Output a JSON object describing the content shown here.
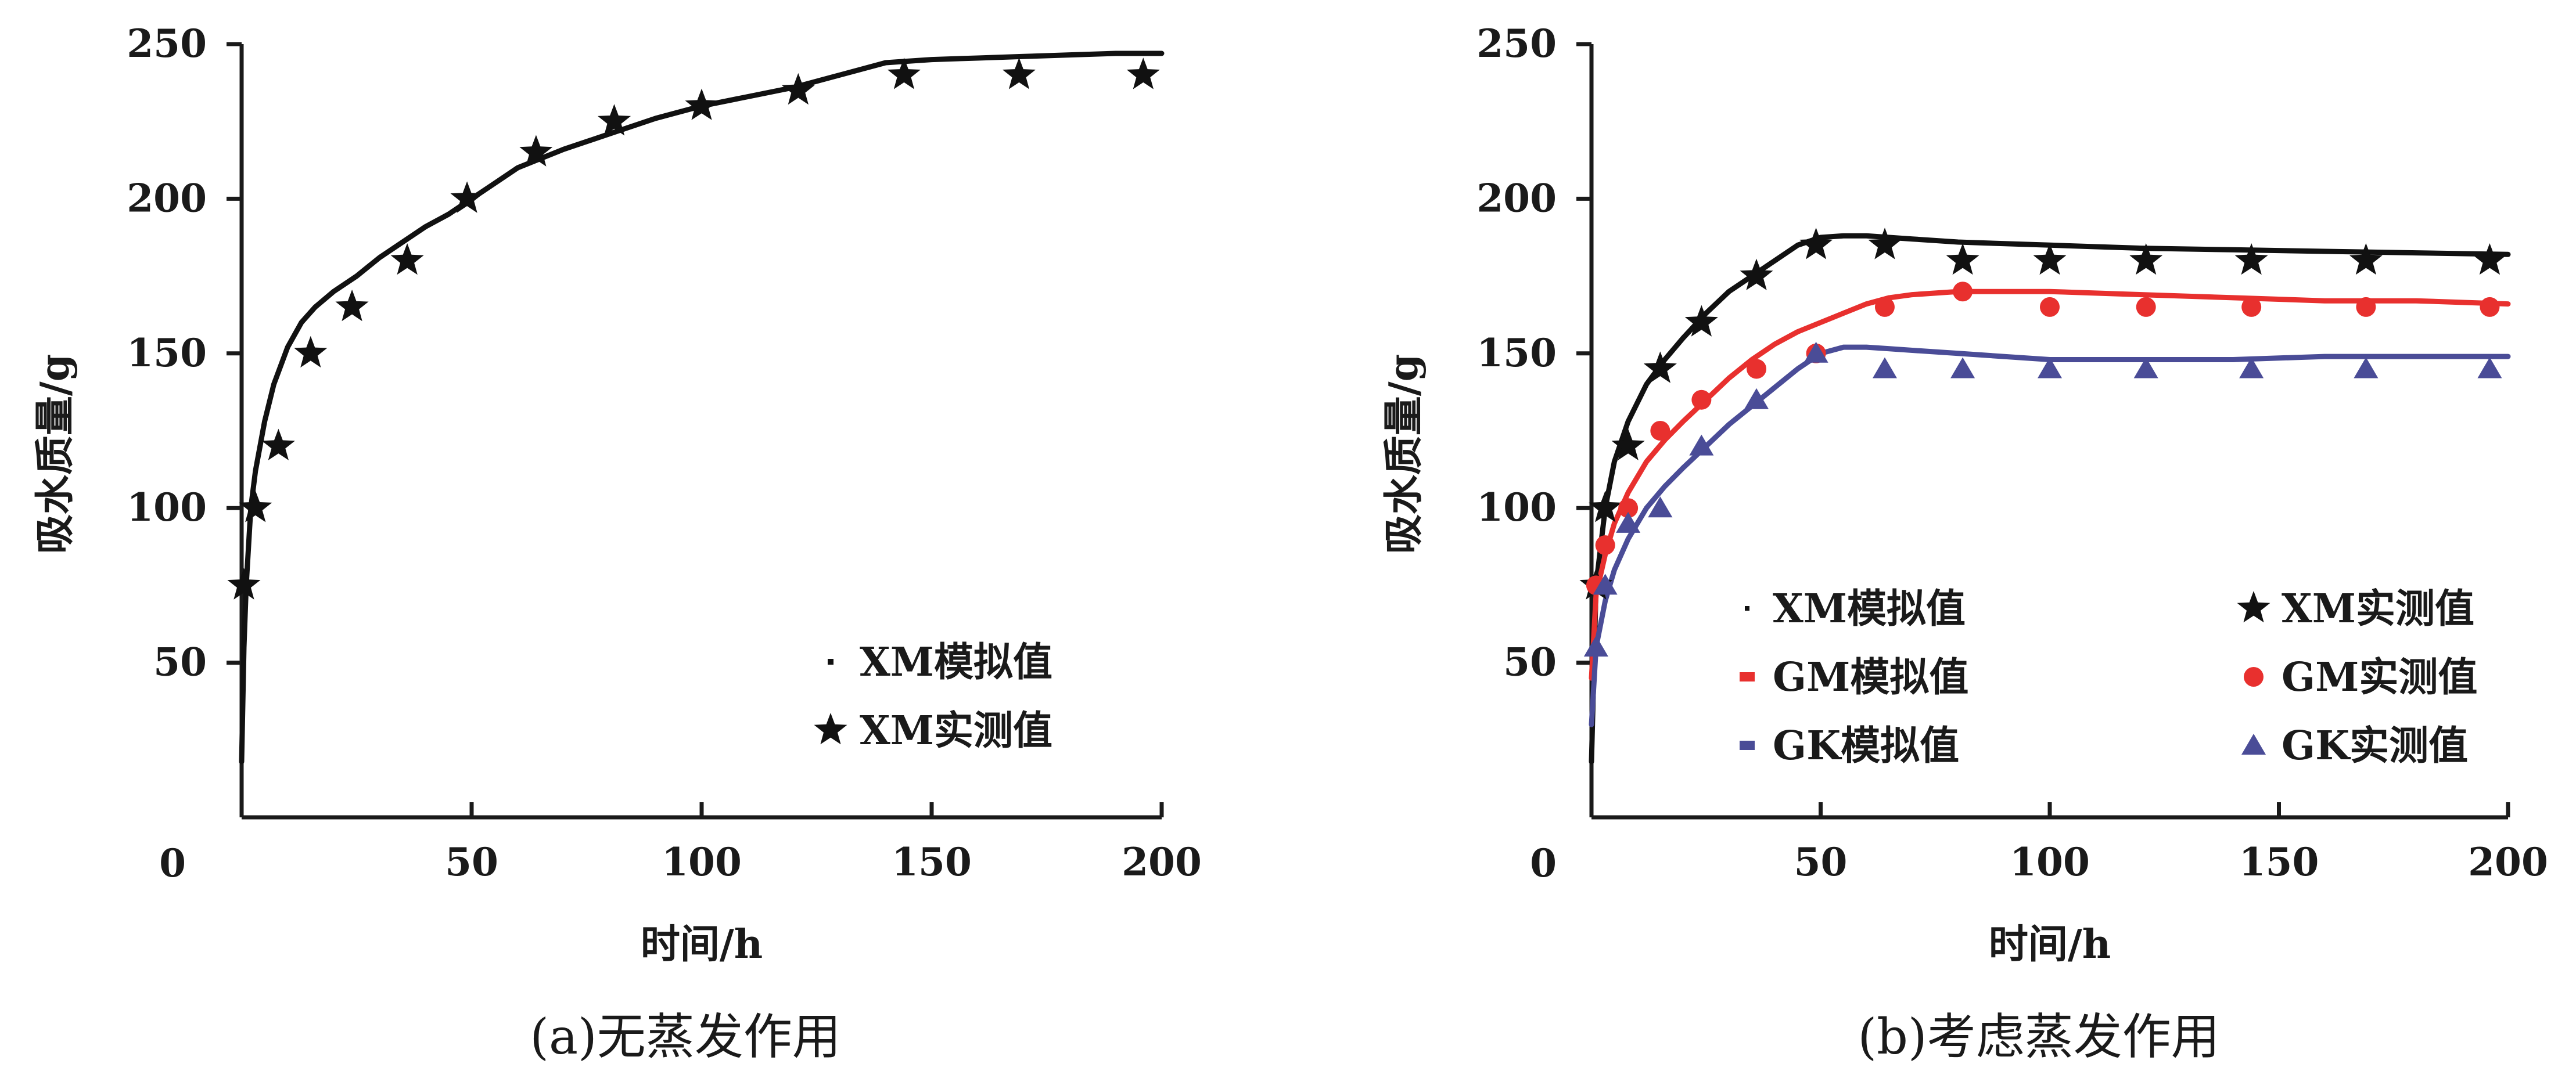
{
  "colors": {
    "xm": "#111111",
    "gm": "#e8302e",
    "gk": "#4a4c97"
  },
  "chart_data": [
    {
      "type": "line",
      "panel": "a",
      "caption": "(a)无蒸发作用",
      "xlabel": "时间/h",
      "ylabel": "吸水质量/g",
      "xlim": [
        0,
        200
      ],
      "ylim": [
        0,
        250
      ],
      "origin_label": "0",
      "xticks": [
        50,
        100,
        150,
        200
      ],
      "yticks": [
        50,
        100,
        150,
        200,
        250
      ],
      "legend_position": "bottom-right",
      "series": [
        {
          "name": "XM模拟值",
          "kind": "simulated",
          "color": "#111111",
          "x": [
            0,
            0.5,
            1,
            2,
            3,
            5,
            7,
            10,
            13,
            16,
            20,
            25,
            30,
            35,
            40,
            45,
            50,
            55,
            60,
            70,
            80,
            90,
            100,
            110,
            120,
            130,
            140,
            150,
            160,
            170,
            180,
            190,
            200
          ],
          "y": [
            18,
            55,
            75,
            100,
            112,
            128,
            140,
            152,
            160,
            165,
            170,
            175,
            181,
            186,
            191,
            195,
            200,
            205,
            210,
            216,
            221,
            226,
            230,
            233,
            236,
            240,
            244,
            245,
            245.5,
            246,
            246.5,
            247,
            247
          ]
        },
        {
          "name": "XM实测值",
          "kind": "measured",
          "marker": "star",
          "color": "#111111",
          "x": [
            0.5,
            3,
            8,
            15,
            24,
            36,
            49,
            64,
            81,
            100,
            121,
            144,
            169,
            196
          ],
          "y": [
            75,
            100,
            120,
            150,
            165,
            180,
            200,
            215,
            225,
            230,
            235,
            240,
            240,
            240
          ]
        }
      ]
    },
    {
      "type": "line",
      "panel": "b",
      "caption": "(b)考虑蒸发作用",
      "xlabel": "时间/h",
      "ylabel": "吸水质量/g",
      "xlim": [
        0,
        200
      ],
      "ylim": [
        0,
        250
      ],
      "origin_label": "0",
      "xticks": [
        50,
        100,
        150,
        200
      ],
      "yticks": [
        50,
        100,
        150,
        200,
        250
      ],
      "legend_position": "bottom",
      "series": [
        {
          "name": "XM模拟值",
          "kind": "simulated",
          "color": "#111111",
          "x": [
            0,
            1,
            3,
            5,
            8,
            12,
            16,
            20,
            25,
            30,
            35,
            40,
            45,
            50,
            55,
            60,
            65,
            70,
            80,
            100,
            120,
            140,
            160,
            180,
            200
          ],
          "y": [
            18,
            75,
            100,
            115,
            128,
            140,
            148,
            155,
            163,
            170,
            175,
            180,
            185,
            187.5,
            188,
            188,
            187.5,
            187,
            186,
            185,
            184,
            183.5,
            183,
            182.5,
            182
          ]
        },
        {
          "name": "XM实测值",
          "kind": "measured",
          "marker": "star",
          "color": "#111111",
          "x": [
            1,
            3,
            8,
            15,
            24,
            36,
            49,
            64,
            81,
            100,
            121,
            144,
            169,
            196
          ],
          "y": [
            75,
            100,
            120,
            145,
            160,
            175,
            185,
            185,
            180,
            180,
            180,
            180,
            180,
            180
          ]
        },
        {
          "name": "GM模拟值",
          "kind": "simulated",
          "color": "#e8302e",
          "x": [
            0,
            1,
            3,
            5,
            8,
            12,
            16,
            20,
            25,
            30,
            35,
            40,
            45,
            50,
            55,
            60,
            65,
            70,
            80,
            100,
            120,
            140,
            160,
            180,
            200
          ],
          "y": [
            45,
            72,
            85,
            95,
            105,
            115,
            122,
            128,
            135,
            142,
            148,
            153,
            157,
            160,
            163,
            166,
            168,
            169,
            170,
            170,
            169,
            168,
            167,
            167,
            166
          ]
        },
        {
          "name": "GM实测值",
          "kind": "measured",
          "marker": "circle",
          "color": "#e8302e",
          "x": [
            1,
            3,
            8,
            15,
            24,
            36,
            49,
            64,
            81,
            100,
            121,
            144,
            169,
            196
          ],
          "y": [
            75,
            88,
            100,
            125,
            135,
            145,
            150,
            165,
            170,
            165,
            165,
            165,
            165,
            165
          ]
        },
        {
          "name": "GK模拟值",
          "kind": "simulated",
          "color": "#4a4c97",
          "x": [
            0,
            1,
            3,
            5,
            8,
            12,
            16,
            20,
            25,
            30,
            35,
            40,
            45,
            50,
            55,
            60,
            65,
            70,
            80,
            100,
            120,
            140,
            160,
            180,
            200
          ],
          "y": [
            30,
            55,
            70,
            80,
            90,
            100,
            107,
            113,
            120,
            127,
            133,
            139,
            145,
            150,
            152,
            152,
            151.5,
            151,
            150,
            148,
            148,
            148,
            149,
            149,
            149
          ]
        },
        {
          "name": "GK实测值",
          "kind": "measured",
          "marker": "triangle",
          "color": "#4a4c97",
          "x": [
            1,
            3,
            8,
            15,
            24,
            36,
            49,
            64,
            81,
            100,
            121,
            144,
            169,
            196
          ],
          "y": [
            55,
            75,
            95,
            100,
            120,
            135,
            150,
            145,
            145,
            145,
            145,
            145,
            145,
            145
          ]
        }
      ]
    }
  ]
}
